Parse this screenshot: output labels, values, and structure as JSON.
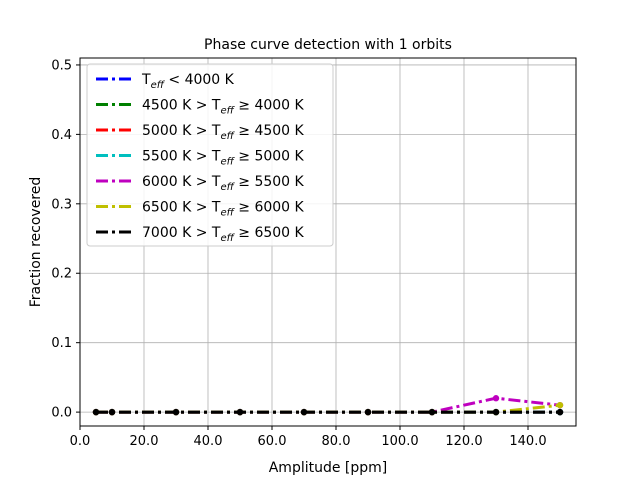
{
  "chart_data": {
    "type": "line",
    "title": "Phase curve detection with 1 orbits",
    "xlabel": "Amplitude [ppm]",
    "ylabel": "Fraction recovered",
    "xlim": [
      0,
      155
    ],
    "ylim": [
      -0.02,
      0.51
    ],
    "xticks": [
      0,
      20,
      40,
      60,
      80,
      100,
      120,
      140
    ],
    "xtick_labels": [
      "0.0",
      "20.0",
      "40.0",
      "60.0",
      "80.0",
      "100.0",
      "120.0",
      "140.0"
    ],
    "yticks": [
      0.0,
      0.1,
      0.2,
      0.3,
      0.4,
      0.5
    ],
    "ytick_labels": [
      "0.0",
      "0.1",
      "0.2",
      "0.3",
      "0.4",
      "0.5"
    ],
    "grid": true,
    "legend_position": "top-left",
    "x": [
      5,
      10,
      30,
      50,
      70,
      90,
      110,
      130,
      150
    ],
    "series": [
      {
        "name_parts": [
          {
            "t": "T",
            "s": ""
          },
          {
            "t": "eff",
            "s": "sub"
          },
          {
            "t": " < 4000 K",
            "s": ""
          }
        ],
        "name": "T_eff < 4000 K",
        "color": "#0000ff",
        "values": [
          0,
          0,
          0,
          0,
          0,
          0,
          0,
          0,
          0
        ]
      },
      {
        "name_parts": [
          {
            "t": "4500 K > T",
            "s": ""
          },
          {
            "t": "eff",
            "s": "sub"
          },
          {
            "t": " ≥ 4000 K",
            "s": ""
          }
        ],
        "name": "4500 K > T_eff ≥ 4000 K",
        "color": "#008000",
        "values": [
          0,
          0,
          0,
          0,
          0,
          0,
          0,
          0,
          0
        ]
      },
      {
        "name_parts": [
          {
            "t": "5000 K > T",
            "s": ""
          },
          {
            "t": "eff",
            "s": "sub"
          },
          {
            "t": " ≥ 4500 K",
            "s": ""
          }
        ],
        "name": "5000 K > T_eff ≥ 4500 K",
        "color": "#ff0000",
        "values": [
          0,
          0,
          0,
          0,
          0,
          0,
          0,
          0,
          0
        ]
      },
      {
        "name_parts": [
          {
            "t": "5500 K > T",
            "s": ""
          },
          {
            "t": "eff",
            "s": "sub"
          },
          {
            "t": " ≥ 5000 K",
            "s": ""
          }
        ],
        "name": "5500 K > T_eff ≥ 5000 K",
        "color": "#00bfbf",
        "values": [
          0,
          0,
          0,
          0,
          0,
          0,
          0,
          0,
          0
        ]
      },
      {
        "name_parts": [
          {
            "t": "6000 K > T",
            "s": ""
          },
          {
            "t": "eff",
            "s": "sub"
          },
          {
            "t": " ≥ 5500 K",
            "s": ""
          }
        ],
        "name": "6000 K > T_eff ≥ 5500 K",
        "color": "#bf00bf",
        "values": [
          0,
          0,
          0,
          0,
          0,
          0,
          0,
          0.02,
          0.01
        ]
      },
      {
        "name_parts": [
          {
            "t": "6500 K > T",
            "s": ""
          },
          {
            "t": "eff",
            "s": "sub"
          },
          {
            "t": " ≥ 6000 K",
            "s": ""
          }
        ],
        "name": "6500 K > T_eff ≥ 6000 K",
        "color": "#bfbf00",
        "values": [
          0,
          0,
          0,
          0,
          0,
          0,
          0,
          0,
          0.01
        ]
      },
      {
        "name_parts": [
          {
            "t": "7000 K > T",
            "s": ""
          },
          {
            "t": "eff",
            "s": "sub"
          },
          {
            "t": " ≥ 6500 K",
            "s": ""
          }
        ],
        "name": "7000 K > T_eff ≥ 6500 K",
        "color": "#000000",
        "values": [
          0,
          0,
          0,
          0,
          0,
          0,
          0,
          0,
          0
        ]
      }
    ]
  }
}
